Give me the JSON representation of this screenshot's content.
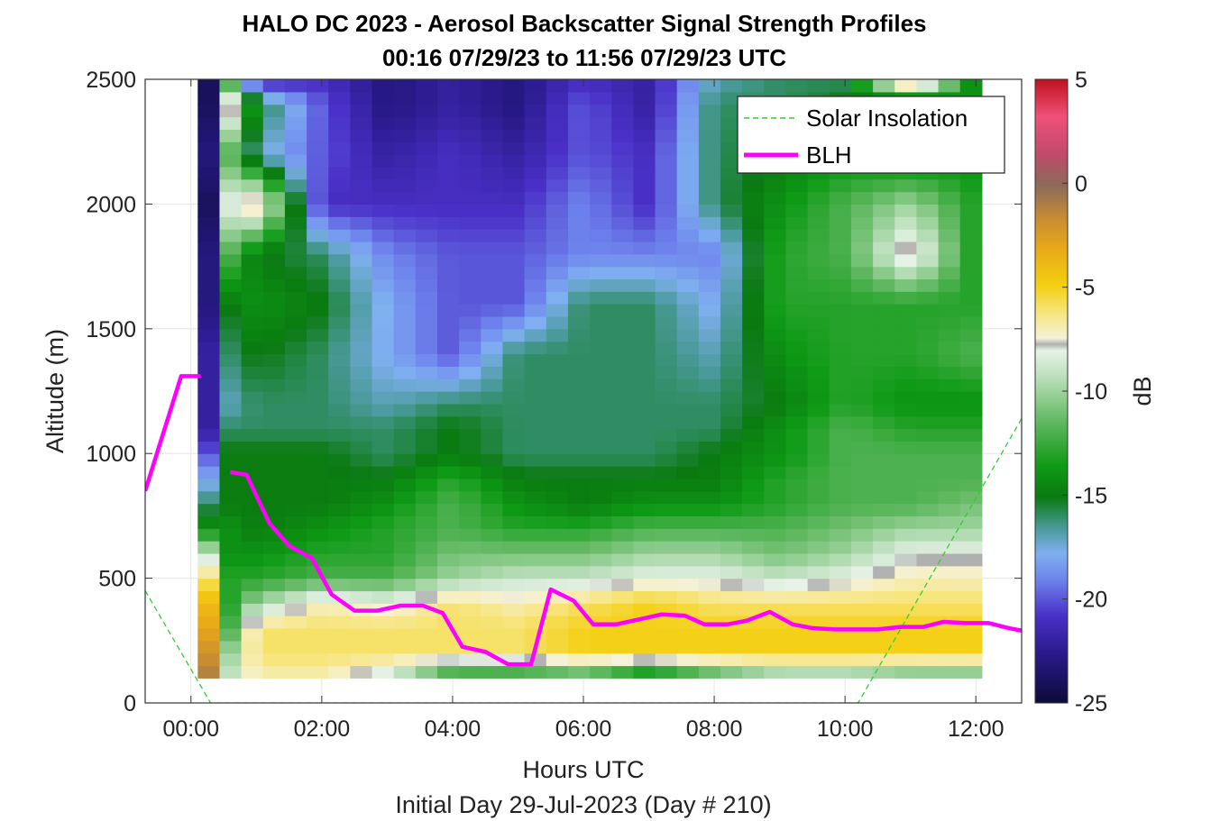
{
  "chart_data": {
    "type": "heatmap",
    "title_line1": "HALO DC 2023 - Aerosol Backscatter Signal Strength Profiles",
    "title_line2": "00:16 07/29/23 to 11:56 07/29/23  UTC",
    "xlabel": "Hours UTC",
    "xlabel2": "Initial Day 29-Jul-2023 (Day # 210)",
    "ylabel": "Altitude (m)",
    "xlim": [
      -0.7,
      12.7
    ],
    "ylim": [
      0,
      2500
    ],
    "x_ticks": [
      0,
      2,
      4,
      6,
      8,
      10,
      12
    ],
    "x_tick_labels": [
      "00:00",
      "02:00",
      "04:00",
      "06:00",
      "08:00",
      "10:00",
      "12:00"
    ],
    "y_ticks": [
      0,
      500,
      1000,
      1500,
      2000,
      2500
    ],
    "y_tick_labels": [
      "0",
      "500",
      "1000",
      "1500",
      "2000",
      "2500"
    ],
    "grid": true,
    "colorbar": {
      "label": "dB",
      "range": [
        -25,
        5
      ],
      "ticks": [
        5,
        0,
        -5,
        -10,
        -15,
        -20,
        -25
      ],
      "tick_labels": [
        "5",
        "0",
        "-5",
        "-10",
        "-15",
        "-20",
        "-25"
      ]
    },
    "heatmap": {
      "x_start_hours": 0.27,
      "x_end_hours": 11.93,
      "column_width_hours": 0.333,
      "y_bottom_m": 100,
      "y_top_m": 2500,
      "row_height_m": 50,
      "columns": [
        {
          "hour": 0.27,
          "altitude_m": [
            100,
            200,
            300,
            400,
            500,
            600,
            700,
            800,
            900,
            1000,
            1100,
            1200,
            1400,
            1600,
            1800,
            2000,
            2200,
            2400,
            2500
          ],
          "dB": [
            -1,
            -2,
            -3,
            -4,
            -6,
            -9,
            -14,
            -16,
            -18,
            -20,
            -22,
            -22,
            -22,
            -23,
            -23,
            -24,
            -23,
            -24,
            -24
          ]
        },
        {
          "hour": 0.6,
          "altitude_m": [
            100,
            200,
            300,
            400,
            500,
            600,
            700,
            800,
            900,
            1000,
            1100,
            1200,
            1400,
            1600,
            1800,
            2000,
            2200,
            2400,
            2500
          ],
          "dB": [
            -9,
            -10,
            -12,
            -13,
            -13,
            -14,
            -14,
            -15,
            -15,
            -15,
            -16,
            -17,
            -16,
            -15,
            -12,
            -8,
            -12,
            -7,
            -13
          ]
        },
        {
          "hour": 1.0,
          "altitude_m": [
            100,
            200,
            300,
            400,
            500,
            600,
            700,
            800,
            900,
            1000,
            1100,
            1200,
            1400,
            1600,
            1800,
            2000,
            2200,
            2400,
            2500
          ],
          "dB": [
            -7,
            -6,
            -6,
            -10,
            -13,
            -14,
            -15,
            -15,
            -15,
            -15,
            -16,
            -16,
            -15,
            -14,
            -15,
            -6,
            -17,
            -15,
            -22
          ]
        },
        {
          "hour": 2.0,
          "altitude_m": [
            100,
            200,
            300,
            400,
            500,
            600,
            700,
            800,
            900,
            1000,
            1100,
            1200,
            1400,
            1600,
            1800,
            2000,
            2200,
            2400,
            2500
          ],
          "dB": [
            -7,
            -6,
            -6,
            -7,
            -12,
            -13,
            -14,
            -15,
            -15,
            -15,
            -16,
            -16,
            -16,
            -15,
            -16,
            -21,
            -20,
            -20,
            -21
          ]
        },
        {
          "hour": 3.0,
          "altitude_m": [
            100,
            200,
            300,
            400,
            500,
            600,
            700,
            800,
            900,
            1000,
            1100,
            1200,
            1400,
            1600,
            1800,
            2000,
            2200,
            2400,
            2500
          ],
          "dB": [
            -9,
            -6,
            -6,
            -8,
            -12,
            -13,
            -13,
            -14,
            -15,
            -16,
            -16,
            -17,
            -18,
            -18,
            -19,
            -21,
            -22,
            -23,
            -23
          ]
        },
        {
          "hour": 4.0,
          "altitude_m": [
            100,
            200,
            300,
            400,
            500,
            600,
            700,
            800,
            900,
            1000,
            1100,
            1200,
            1400,
            1600,
            1800,
            2000,
            2200,
            2400,
            2500
          ],
          "dB": [
            -14,
            -6,
            -6,
            -6,
            -10,
            -11,
            -12,
            -12,
            -13,
            -15,
            -15,
            -16,
            -20,
            -20,
            -20,
            -21,
            -21,
            -22,
            -22
          ]
        },
        {
          "hour": 5.0,
          "altitude_m": [
            100,
            200,
            300,
            400,
            500,
            600,
            700,
            800,
            900,
            1000,
            1100,
            1200,
            1400,
            1600,
            1800,
            2000,
            2200,
            2400,
            2500
          ],
          "dB": [
            -14,
            -6,
            -6,
            -7,
            -9,
            -11,
            -13,
            -14,
            -15,
            -16,
            -16,
            -16,
            -16,
            -20,
            -20,
            -21,
            -22,
            -23,
            -23
          ]
        },
        {
          "hour": 6.0,
          "altitude_m": [
            100,
            200,
            300,
            400,
            500,
            600,
            700,
            800,
            900,
            1000,
            1100,
            1200,
            1400,
            1600,
            1800,
            2000,
            2200,
            2400,
            2500
          ],
          "dB": [
            -13,
            -5,
            -5,
            -6,
            -9,
            -11,
            -13,
            -15,
            -15,
            -16,
            -16,
            -16,
            -16,
            -16,
            -19,
            -19,
            -20,
            -20,
            -21
          ]
        },
        {
          "hour": 7.0,
          "altitude_m": [
            100,
            200,
            300,
            400,
            500,
            600,
            700,
            800,
            900,
            1000,
            1100,
            1200,
            1400,
            1600,
            1800,
            2000,
            2200,
            2400,
            2500
          ],
          "dB": [
            -16,
            -5,
            -5,
            -5,
            -8,
            -10,
            -12,
            -14,
            -15,
            -16,
            -16,
            -16,
            -16,
            -16,
            -19,
            -21,
            -21,
            -22,
            -22
          ]
        },
        {
          "hour": 8.0,
          "altitude_m": [
            100,
            200,
            300,
            400,
            500,
            600,
            700,
            800,
            900,
            1000,
            1100,
            1200,
            1400,
            1600,
            1800,
            2000,
            2200,
            2400,
            2500
          ],
          "dB": [
            -13,
            -5,
            -5,
            -6,
            -8,
            -10,
            -12,
            -14,
            -15,
            -15,
            -16,
            -16,
            -17,
            -18,
            -19,
            -16,
            -16,
            -16,
            -17
          ]
        },
        {
          "hour": 9.0,
          "altitude_m": [
            100,
            200,
            300,
            400,
            500,
            600,
            700,
            800,
            900,
            1000,
            1100,
            1200,
            1400,
            1600,
            1800,
            2000,
            2200,
            2400,
            2500
          ],
          "dB": [
            -11,
            -5,
            -5,
            -6,
            -9,
            -11,
            -12,
            -13,
            -13,
            -14,
            -14,
            -15,
            -14,
            -13,
            -13,
            -14,
            -15,
            -16,
            -16
          ]
        },
        {
          "hour": 10.0,
          "altitude_m": [
            100,
            200,
            300,
            400,
            500,
            600,
            700,
            800,
            900,
            1000,
            1100,
            1200,
            1400,
            1600,
            1800,
            2000,
            2200,
            2400,
            2500
          ],
          "dB": [
            -11,
            -5,
            -5,
            -6,
            -8,
            -10,
            -11,
            -12,
            -12,
            -12,
            -12,
            -13,
            -13,
            -13,
            -12,
            -12,
            -14,
            -15,
            -16
          ]
        },
        {
          "hour": 11.0,
          "altitude_m": [
            100,
            200,
            300,
            400,
            500,
            600,
            700,
            800,
            900,
            1000,
            1100,
            1200,
            1400,
            1600,
            1800,
            2000,
            2200,
            2400,
            2500
          ],
          "dB": [
            -12,
            -5,
            -5,
            -6,
            -7,
            -8,
            -10,
            -12,
            -12,
            -12,
            -13,
            -14,
            -13,
            -13,
            -7,
            -10,
            -15,
            -17,
            -3
          ]
        },
        {
          "hour": 11.93,
          "altitude_m": [
            100,
            200,
            300,
            400,
            500,
            600,
            700,
            800,
            900,
            1000,
            1100,
            1200,
            1400,
            1600,
            1800,
            2000,
            2200,
            2400,
            2500
          ],
          "dB": [
            -12,
            -5,
            -5,
            -6,
            -7,
            -8,
            -10,
            -11,
            -12,
            -12,
            -13,
            -14,
            -12,
            -13,
            -13,
            -13,
            -14,
            -14,
            -14
          ]
        }
      ]
    },
    "series": [
      {
        "name": "Solar Insolation",
        "style": "dashed",
        "color": "#33cc33",
        "x": [
          -0.7,
          0.3,
          10.2,
          12.7
        ],
        "y": [
          450,
          0,
          0,
          1140
        ]
      },
      {
        "name": "BLH",
        "style": "solid",
        "color": "#ff00ff",
        "x": [
          -0.7,
          -0.15,
          0.15
        ],
        "y": [
          850,
          1310,
          1310
        ]
      },
      {
        "name": "BLH",
        "style": "solid",
        "color": "#ff00ff",
        "x": [
          0.6,
          0.85,
          1.2,
          1.5,
          1.85,
          2.15,
          2.5,
          2.85,
          3.2,
          3.55,
          3.85,
          4.15,
          4.5,
          4.85,
          5.2,
          5.5,
          5.85,
          6.15,
          6.5,
          6.85,
          7.2,
          7.55,
          7.85,
          8.2,
          8.5,
          8.85,
          9.2,
          9.5,
          9.85,
          10.2,
          10.5,
          10.85,
          11.2,
          11.5,
          11.85,
          12.2,
          12.5,
          12.7
        ],
        "y": [
          925,
          915,
          720,
          630,
          580,
          435,
          370,
          370,
          390,
          390,
          360,
          225,
          205,
          155,
          155,
          455,
          410,
          315,
          315,
          335,
          355,
          350,
          315,
          315,
          330,
          365,
          315,
          300,
          295,
          295,
          295,
          305,
          305,
          325,
          320,
          320,
          300,
          290
        ]
      }
    ],
    "legend": {
      "placement": "top-right",
      "entries": [
        "Solar Insolation",
        "BLH"
      ]
    }
  }
}
